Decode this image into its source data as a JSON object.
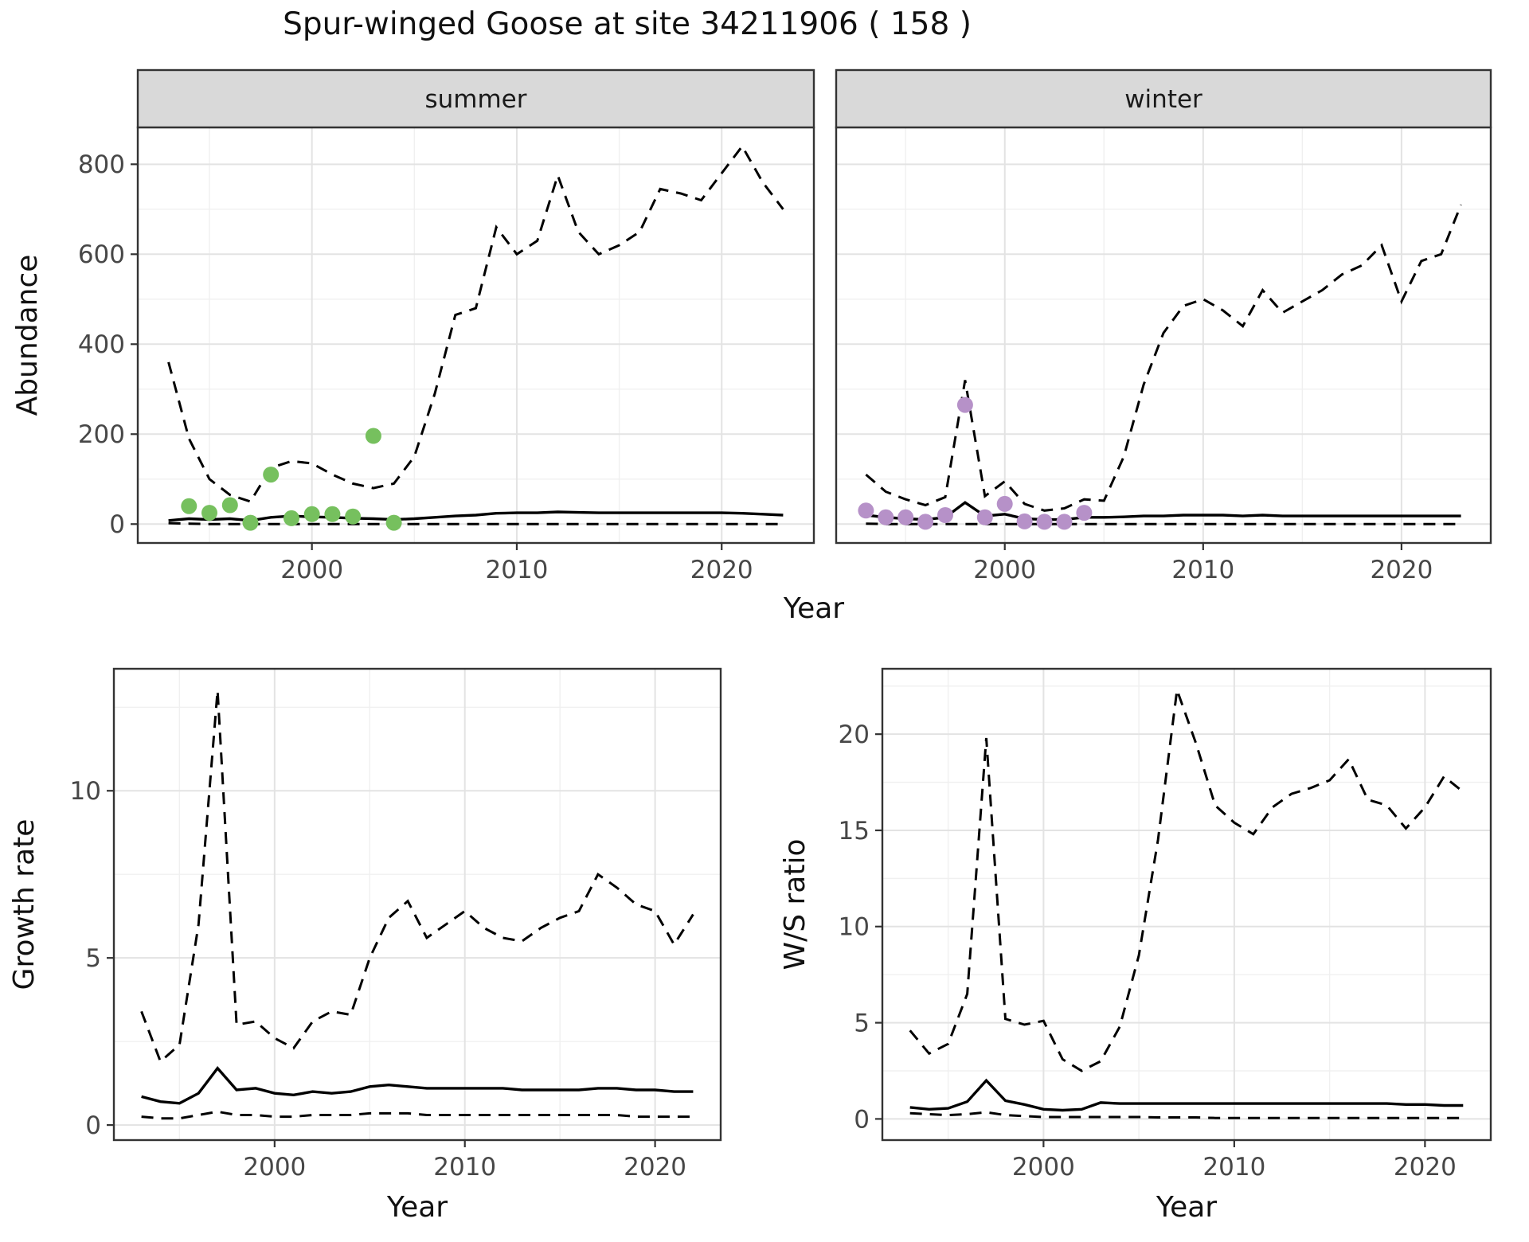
{
  "title": "Spur-winged Goose at site 34211906 ( 158 )",
  "colors": {
    "background": "#ffffff",
    "panel_border": "#333333",
    "grid_major": "#e3e3e3",
    "grid_minor": "#f0f0f0",
    "strip_fill": "#d9d9d9",
    "strip_text": "#1a1a1a",
    "axis_text": "#474747",
    "title_text": "#111111",
    "line": "#000000",
    "summer_points": "#76c05e",
    "winter_points": "#b691c8"
  },
  "chart_data": [
    {
      "id": "abundance-summer",
      "type": "line",
      "facet_label": "summer",
      "xlabel": "Year",
      "ylabel": "Abundance",
      "xlim": [
        1991.5,
        2024.5
      ],
      "ylim": [
        -42,
        882
      ],
      "xticks": [
        2000,
        2010,
        2020
      ],
      "yticks": [
        0,
        200,
        400,
        600,
        800
      ],
      "x": [
        1993,
        1994,
        1995,
        1996,
        1997,
        1998,
        1999,
        2000,
        2001,
        2002,
        2003,
        2004,
        2005,
        2006,
        2007,
        2008,
        2009,
        2010,
        2011,
        2012,
        2013,
        2014,
        2015,
        2016,
        2017,
        2018,
        2019,
        2020,
        2021,
        2022,
        2023
      ],
      "series": [
        {
          "name": "upper-ci",
          "style": "dashed",
          "color": "#000000",
          "values": [
            360,
            190,
            100,
            65,
            50,
            125,
            140,
            135,
            110,
            90,
            80,
            90,
            150,
            290,
            465,
            480,
            660,
            600,
            630,
            775,
            650,
            600,
            620,
            650,
            745,
            735,
            720,
            780,
            840,
            760,
            700
          ]
        },
        {
          "name": "median",
          "style": "solid",
          "color": "#000000",
          "values": [
            8,
            12,
            10,
            12,
            8,
            15,
            18,
            16,
            15,
            13,
            12,
            10,
            12,
            15,
            18,
            20,
            24,
            25,
            25,
            27,
            26,
            25,
            25,
            25,
            25,
            25,
            25,
            25,
            24,
            22,
            20
          ]
        },
        {
          "name": "lower-ci",
          "style": "dashed",
          "color": "#000000",
          "values": [
            2,
            1,
            0,
            0,
            0,
            0,
            0,
            0,
            0,
            0,
            0,
            0,
            0,
            0,
            0,
            0,
            0,
            0,
            0,
            0,
            0,
            0,
            0,
            0,
            0,
            0,
            0,
            0,
            0,
            0,
            0
          ]
        }
      ],
      "points": {
        "name": "observed-counts-summer",
        "color": "#76c05e",
        "x": [
          1994,
          1995,
          1996,
          1997,
          1998,
          1999,
          2000,
          2001,
          2002,
          2003,
          2004
        ],
        "y": [
          40,
          25,
          42,
          3,
          110,
          13,
          22,
          22,
          17,
          196,
          3
        ]
      }
    },
    {
      "id": "abundance-winter",
      "type": "line",
      "facet_label": "winter",
      "xlabel": "Year",
      "ylabel": "",
      "xlim": [
        1991.5,
        2024.5
      ],
      "ylim": [
        -42,
        882
      ],
      "xticks": [
        2000,
        2010,
        2020
      ],
      "yticks": [
        0,
        200,
        400,
        600,
        800
      ],
      "x": [
        1993,
        1994,
        1995,
        1996,
        1997,
        1998,
        1999,
        2000,
        2001,
        2002,
        2003,
        2004,
        2005,
        2006,
        2007,
        2008,
        2009,
        2010,
        2011,
        2012,
        2013,
        2014,
        2015,
        2016,
        2017,
        2018,
        2019,
        2020,
        2021,
        2022,
        2023
      ],
      "series": [
        {
          "name": "upper-ci",
          "style": "dashed",
          "color": "#000000",
          "values": [
            110,
            72,
            55,
            42,
            60,
            320,
            62,
            95,
            45,
            30,
            35,
            55,
            52,
            150,
            310,
            425,
            485,
            500,
            475,
            440,
            520,
            470,
            495,
            520,
            555,
            575,
            620,
            495,
            585,
            600,
            710
          ]
        },
        {
          "name": "median",
          "style": "solid",
          "color": "#000000",
          "values": [
            20,
            15,
            12,
            10,
            15,
            48,
            18,
            22,
            12,
            10,
            10,
            15,
            15,
            16,
            18,
            18,
            20,
            20,
            20,
            18,
            20,
            18,
            18,
            18,
            18,
            18,
            18,
            18,
            18,
            18,
            18
          ]
        },
        {
          "name": "lower-ci",
          "style": "dashed",
          "color": "#000000",
          "values": [
            1,
            0,
            0,
            0,
            0,
            0,
            0,
            0,
            0,
            0,
            0,
            0,
            0,
            0,
            0,
            0,
            0,
            0,
            0,
            0,
            0,
            0,
            0,
            0,
            0,
            0,
            0,
            0,
            0,
            0,
            0
          ]
        }
      ],
      "points": {
        "name": "observed-counts-winter",
        "color": "#b691c8",
        "x": [
          1993,
          1994,
          1995,
          1996,
          1997,
          1998,
          1999,
          2000,
          2001,
          2002,
          2003,
          2004
        ],
        "y": [
          30,
          15,
          15,
          5,
          20,
          265,
          15,
          45,
          6,
          5,
          5,
          25
        ]
      }
    },
    {
      "id": "growth-rate",
      "type": "line",
      "facet_label": null,
      "xlabel": "Year",
      "ylabel": "Growth rate",
      "xlim": [
        1991.55,
        2023.45
      ],
      "ylim": [
        -0.45,
        13.65
      ],
      "xticks": [
        2000,
        2010,
        2020
      ],
      "yticks": [
        0,
        5,
        10
      ],
      "x": [
        1993,
        1994,
        1995,
        1996,
        1997,
        1998,
        1999,
        2000,
        2001,
        2002,
        2003,
        2004,
        2005,
        2006,
        2007,
        2008,
        2009,
        2010,
        2011,
        2012,
        2013,
        2014,
        2015,
        2016,
        2017,
        2018,
        2019,
        2020,
        2021,
        2022
      ],
      "series": [
        {
          "name": "upper-ci",
          "style": "dashed",
          "color": "#000000",
          "values": [
            3.4,
            1.9,
            2.4,
            6.0,
            13.0,
            3.0,
            3.1,
            2.6,
            2.3,
            3.1,
            3.4,
            3.3,
            5.0,
            6.2,
            6.7,
            5.6,
            6.0,
            6.4,
            5.9,
            5.6,
            5.5,
            5.9,
            6.2,
            6.4,
            7.5,
            7.1,
            6.6,
            6.4,
            5.4,
            6.3
          ]
        },
        {
          "name": "median",
          "style": "solid",
          "color": "#000000",
          "values": [
            0.85,
            0.7,
            0.65,
            0.95,
            1.7,
            1.05,
            1.1,
            0.95,
            0.9,
            1.0,
            0.95,
            1.0,
            1.15,
            1.2,
            1.15,
            1.1,
            1.1,
            1.1,
            1.1,
            1.1,
            1.05,
            1.05,
            1.05,
            1.05,
            1.1,
            1.1,
            1.05,
            1.05,
            1.0,
            1.0
          ]
        },
        {
          "name": "lower-ci",
          "style": "dashed",
          "color": "#000000",
          "values": [
            0.25,
            0.2,
            0.2,
            0.3,
            0.4,
            0.3,
            0.3,
            0.25,
            0.25,
            0.3,
            0.3,
            0.3,
            0.35,
            0.35,
            0.35,
            0.3,
            0.3,
            0.3,
            0.3,
            0.3,
            0.3,
            0.3,
            0.3,
            0.3,
            0.3,
            0.3,
            0.25,
            0.25,
            0.25,
            0.25
          ]
        }
      ],
      "points": null
    },
    {
      "id": "ws-ratio",
      "type": "line",
      "facet_label": null,
      "xlabel": "Year",
      "ylabel": "W/S ratio",
      "xlim": [
        1991.55,
        2023.45
      ],
      "ylim": [
        -1.1,
        23.4
      ],
      "xticks": [
        2000,
        2010,
        2020
      ],
      "yticks": [
        0,
        5,
        10,
        15,
        20
      ],
      "x": [
        1993,
        1994,
        1995,
        1996,
        1997,
        1998,
        1999,
        2000,
        2001,
        2002,
        2003,
        2004,
        2005,
        2006,
        2007,
        2008,
        2009,
        2010,
        2011,
        2012,
        2013,
        2014,
        2015,
        2016,
        2017,
        2018,
        2019,
        2020,
        2021,
        2022
      ],
      "series": [
        {
          "name": "upper-ci",
          "style": "dashed",
          "color": "#000000",
          "values": [
            4.6,
            3.4,
            3.9,
            6.5,
            19.8,
            5.2,
            4.9,
            5.1,
            3.1,
            2.5,
            3.0,
            4.8,
            8.5,
            14.5,
            22.3,
            19.5,
            16.3,
            15.4,
            14.8,
            16.2,
            16.9,
            17.2,
            17.6,
            18.7,
            16.6,
            16.3,
            15.1,
            16.2,
            17.8,
            17.0
          ]
        },
        {
          "name": "median",
          "style": "solid",
          "color": "#000000",
          "values": [
            0.6,
            0.5,
            0.55,
            0.9,
            2.0,
            0.95,
            0.75,
            0.5,
            0.45,
            0.5,
            0.85,
            0.8,
            0.8,
            0.8,
            0.8,
            0.8,
            0.8,
            0.8,
            0.8,
            0.8,
            0.8,
            0.8,
            0.8,
            0.8,
            0.8,
            0.8,
            0.75,
            0.75,
            0.7,
            0.7
          ]
        },
        {
          "name": "lower-ci",
          "style": "dashed",
          "color": "#000000",
          "values": [
            0.3,
            0.25,
            0.2,
            0.25,
            0.35,
            0.2,
            0.15,
            0.1,
            0.1,
            0.1,
            0.1,
            0.1,
            0.1,
            0.08,
            0.08,
            0.08,
            0.05,
            0.05,
            0.05,
            0.05,
            0.05,
            0.05,
            0.05,
            0.05,
            0.05,
            0.05,
            0.05,
            0.05,
            0.05,
            0.05
          ]
        }
      ],
      "points": null
    }
  ]
}
